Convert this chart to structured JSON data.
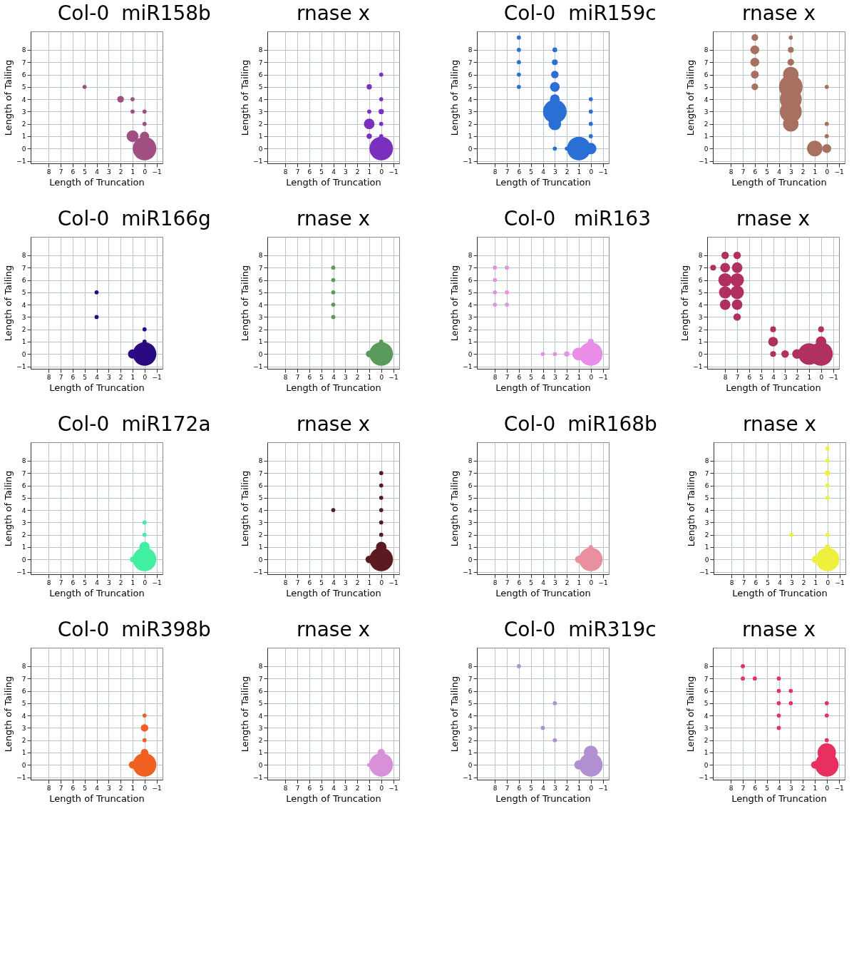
{
  "chart_data": [
    {
      "type": "bubble",
      "title": "Col-0",
      "subtitle": "miR158b",
      "xlabel": "Length of Truncation",
      "ylabel": "Length of Tailing",
      "xlim": [
        9.5,
        -1.5
      ],
      "ylim": [
        -1.2,
        9.5
      ],
      "xticks": [
        8,
        7,
        6,
        5,
        4,
        3,
        2,
        1,
        0,
        -1
      ],
      "yticks": [
        -1,
        0,
        1,
        2,
        3,
        4,
        5,
        6,
        7,
        8
      ],
      "grid": true,
      "marker": "circle",
      "series": [
        {
          "color": "#a05080",
          "x": [
            5,
            2,
            1,
            1,
            0,
            0,
            1,
            0,
            0
          ],
          "values": [
            5,
            4,
            4,
            3,
            3,
            2,
            1,
            1,
            0
          ],
          "sizes": [
            0.03,
            0.08,
            0.03,
            0.03,
            0.03,
            0.03,
            0.25,
            0.15,
            1
          ]
        }
      ]
    },
    {
      "type": "bubble",
      "title": "rnase x",
      "xlabel": "Length of Truncation",
      "ylabel": "Length of Tailing",
      "xlim": [
        9.5,
        -1.5
      ],
      "ylim": [
        -1.2,
        9.5
      ],
      "xticks": [
        8,
        7,
        6,
        5,
        4,
        3,
        2,
        1,
        0,
        -1
      ],
      "yticks": [
        -1,
        0,
        1,
        2,
        3,
        4,
        5,
        6,
        7,
        8
      ],
      "grid": true,
      "marker": "circle",
      "series": [
        {
          "color": "#7b2fbe",
          "x": [
            0,
            1,
            0,
            1,
            0,
            1,
            0,
            1,
            0,
            0
          ],
          "values": [
            6,
            5,
            4,
            3,
            3,
            2,
            2,
            1,
            1,
            0
          ],
          "sizes": [
            0.03,
            0.05,
            0.03,
            0.03,
            0.05,
            0.2,
            0.03,
            0.05,
            0.03,
            1
          ]
        }
      ]
    },
    {
      "type": "bubble",
      "title": "Col-0",
      "subtitle": "miR159c",
      "xlabel": "Length of Truncation",
      "ylabel": "Length of Tailing",
      "xlim": [
        9.5,
        -1.5
      ],
      "ylim": [
        -1.2,
        9.5
      ],
      "xticks": [
        8,
        7,
        6,
        5,
        4,
        3,
        2,
        1,
        0,
        -1
      ],
      "yticks": [
        -1,
        0,
        1,
        2,
        3,
        4,
        5,
        6,
        7,
        8
      ],
      "grid": true,
      "marker": "circle",
      "series": [
        {
          "color": "#2a6fd4",
          "x": [
            6,
            6,
            6,
            6,
            6,
            3,
            3,
            3,
            3,
            3,
            3,
            3,
            3,
            2,
            1,
            0,
            0,
            0,
            0,
            0
          ],
          "values": [
            9,
            8,
            7,
            6,
            5,
            8,
            7,
            6,
            5,
            4,
            3,
            2,
            0,
            0,
            0,
            0,
            4,
            3,
            2,
            1
          ],
          "sizes": [
            0.03,
            0.03,
            0.03,
            0.03,
            0.03,
            0.04,
            0.06,
            0.1,
            0.17,
            0.17,
            1,
            0.29,
            0.03,
            0.03,
            1,
            0.23,
            0.03,
            0.03,
            0.03,
            0.03
          ]
        }
      ]
    },
    {
      "type": "bubble",
      "title": "rnase x",
      "xlabel": "Length of Truncation",
      "ylabel": "Length of Tailing",
      "xlim": [
        9.5,
        -1.5
      ],
      "ylim": [
        -1.2,
        9.5
      ],
      "xticks": [
        8,
        7,
        6,
        5,
        4,
        3,
        2,
        1,
        0,
        -1
      ],
      "yticks": [
        -1,
        0,
        1,
        2,
        3,
        4,
        5,
        6,
        7,
        8
      ],
      "grid": true,
      "marker": "circle",
      "series": [
        {
          "color": "#a87060",
          "x": [
            6,
            6,
            6,
            6,
            6,
            3,
            3,
            3,
            3,
            3,
            3,
            3,
            3,
            1,
            0,
            0,
            0,
            0
          ],
          "values": [
            9,
            8,
            7,
            6,
            5,
            9,
            8,
            7,
            6,
            5,
            4,
            3,
            2,
            0,
            0,
            5,
            2,
            1
          ],
          "sizes": [
            0.08,
            0.14,
            0.14,
            0.11,
            0.08,
            0.03,
            0.06,
            0.08,
            0.43,
            1,
            0.86,
            0.86,
            0.43,
            0.43,
            0.14,
            0.03,
            0.03,
            0.03
          ]
        }
      ]
    },
    {
      "type": "bubble",
      "title": "Col-0",
      "subtitle": "miR166g",
      "xlabel": "Length of Truncation",
      "ylabel": "Length of Tailing",
      "xlim": [
        9.5,
        -1.5
      ],
      "ylim": [
        -1.2,
        9.5
      ],
      "xticks": [
        8,
        7,
        6,
        5,
        4,
        3,
        2,
        1,
        0,
        -1
      ],
      "yticks": [
        -1,
        0,
        1,
        2,
        3,
        4,
        5,
        6,
        7,
        8
      ],
      "grid": true,
      "marker": "circle",
      "series": [
        {
          "color": "#2a0a80",
          "x": [
            4,
            4,
            1,
            0,
            0,
            0
          ],
          "values": [
            5,
            3,
            0,
            0,
            1,
            2
          ],
          "sizes": [
            0.03,
            0.03,
            0.15,
            1,
            0.03,
            0.03
          ]
        }
      ]
    },
    {
      "type": "bubble",
      "title": "rnase x",
      "xlabel": "Length of Truncation",
      "ylabel": "Length of Tailing",
      "xlim": [
        9.5,
        -1.5
      ],
      "ylim": [
        -1.2,
        9.5
      ],
      "xticks": [
        8,
        7,
        6,
        5,
        4,
        3,
        2,
        1,
        0,
        -1
      ],
      "yticks": [
        -1,
        0,
        1,
        2,
        3,
        4,
        5,
        6,
        7,
        8
      ],
      "grid": true,
      "marker": "circle",
      "series": [
        {
          "color": "#5a9a5a",
          "x": [
            4,
            4,
            4,
            4,
            4,
            1,
            0,
            0
          ],
          "values": [
            7,
            6,
            5,
            4,
            3,
            0,
            0,
            1
          ],
          "sizes": [
            0.03,
            0.03,
            0.03,
            0.03,
            0.03,
            0.08,
            1,
            0.03
          ]
        }
      ]
    },
    {
      "type": "bubble",
      "title": "Col-0",
      "subtitle": "miR163",
      "xlabel": "Length of Truncation",
      "ylabel": "Length of Tailing",
      "xlim": [
        9.5,
        -1.5
      ],
      "ylim": [
        -1.2,
        9.5
      ],
      "xticks": [
        8,
        7,
        6,
        5,
        4,
        3,
        2,
        1,
        0,
        -1
      ],
      "yticks": [
        -1,
        0,
        1,
        2,
        3,
        4,
        5,
        6,
        7,
        8
      ],
      "grid": true,
      "marker": "circle",
      "series": [
        {
          "color": "#e88ee8",
          "x": [
            8,
            7,
            8,
            8,
            7,
            8,
            7,
            4,
            3,
            2,
            1,
            0,
            0
          ],
          "values": [
            7,
            7,
            6,
            5,
            5,
            4,
            4,
            0,
            0,
            0,
            0,
            0,
            1
          ],
          "sizes": [
            0.03,
            0.03,
            0.03,
            0.03,
            0.03,
            0.03,
            0.03,
            0.03,
            0.03,
            0.05,
            0.3,
            1,
            0.06
          ]
        }
      ]
    },
    {
      "type": "bubble",
      "title": "rnase x",
      "xlabel": "Length of Truncation",
      "ylabel": "Length of Tailing",
      "xlim": [
        9.5,
        -1.5
      ],
      "ylim": [
        -1.2,
        9.5
      ],
      "xticks": [
        8,
        7,
        6,
        5,
        4,
        3,
        2,
        1,
        0,
        -1
      ],
      "yticks": [
        -1,
        0,
        1,
        2,
        3,
        4,
        5,
        6,
        7,
        8
      ],
      "grid": true,
      "marker": "circle",
      "series": [
        {
          "color": "#b03060",
          "x": [
            8,
            7,
            9,
            8,
            7,
            8,
            7,
            8,
            7,
            8,
            7,
            7,
            4,
            4,
            4,
            3,
            2,
            1,
            0,
            0,
            0
          ],
          "values": [
            8,
            8,
            7,
            7,
            7,
            6,
            6,
            5,
            5,
            4,
            4,
            3,
            2,
            1,
            0,
            0,
            0,
            0,
            0,
            1,
            2
          ],
          "sizes": [
            0.1,
            0.1,
            0.06,
            0.17,
            0.2,
            0.33,
            0.33,
            0.27,
            0.33,
            0.2,
            0.2,
            0.1,
            0.06,
            0.17,
            0.06,
            0.1,
            0.17,
            0.83,
            1,
            0.2,
            0.06
          ]
        }
      ]
    },
    {
      "type": "bubble",
      "title": "Col-0",
      "subtitle": "miR172a",
      "xlabel": "Length of Truncation",
      "ylabel": "Length of Tailing",
      "xlim": [
        9.5,
        -1.5
      ],
      "ylim": [
        -1.2,
        9.5
      ],
      "xticks": [
        8,
        7,
        6,
        5,
        4,
        3,
        2,
        1,
        0,
        -1
      ],
      "yticks": [
        -1,
        0,
        1,
        2,
        3,
        4,
        5,
        6,
        7,
        8
      ],
      "grid": true,
      "marker": "circle",
      "series": [
        {
          "color": "#40f0a0",
          "x": [
            0,
            0,
            0,
            1,
            0
          ],
          "values": [
            3,
            2,
            1,
            0,
            0
          ],
          "sizes": [
            0.03,
            0.03,
            0.2,
            0.05,
            1
          ]
        }
      ]
    },
    {
      "type": "bubble",
      "title": "rnase x",
      "xlabel": "Length of Truncation",
      "ylabel": "Length of Tailing",
      "xlim": [
        9.5,
        -1.5
      ],
      "ylim": [
        -1.2,
        9.5
      ],
      "xticks": [
        8,
        7,
        6,
        5,
        4,
        3,
        2,
        1,
        0,
        -1
      ],
      "yticks": [
        -1,
        0,
        1,
        2,
        3,
        4,
        5,
        6,
        7,
        8
      ],
      "grid": true,
      "marker": "circle",
      "series": [
        {
          "color": "#5a1a20",
          "x": [
            0,
            0,
            0,
            0,
            0,
            4,
            0,
            0,
            1,
            0
          ],
          "values": [
            7,
            6,
            5,
            4,
            3,
            4,
            2,
            1,
            0,
            0
          ],
          "sizes": [
            0.03,
            0.03,
            0.03,
            0.03,
            0.03,
            0.03,
            0.03,
            0.2,
            0.1,
            1
          ]
        }
      ]
    },
    {
      "type": "bubble",
      "title": "Col-0",
      "subtitle": "miR168b",
      "xlabel": "Length of Truncation",
      "ylabel": "Length of Tailing",
      "xlim": [
        9.5,
        -1.5
      ],
      "ylim": [
        -1.2,
        9.5
      ],
      "xticks": [
        8,
        7,
        6,
        5,
        4,
        3,
        2,
        1,
        0,
        -1
      ],
      "yticks": [
        -1,
        0,
        1,
        2,
        3,
        4,
        5,
        6,
        7,
        8
      ],
      "grid": true,
      "marker": "circle",
      "series": [
        {
          "color": "#e890a0",
          "x": [
            1,
            0,
            0
          ],
          "values": [
            0,
            0,
            1
          ],
          "sizes": [
            0.1,
            1,
            0.03
          ]
        }
      ]
    },
    {
      "type": "bubble",
      "title": "rnase x",
      "xlabel": "Length of Truncation",
      "ylabel": "Length of Tailing",
      "xlim": [
        9.5,
        -1.5
      ],
      "ylim": [
        -1.2,
        9.5
      ],
      "xticks": [
        8,
        7,
        6,
        5,
        4,
        3,
        2,
        1,
        0,
        -1
      ],
      "yticks": [
        -1,
        0,
        1,
        2,
        3,
        4,
        5,
        6,
        7,
        8
      ],
      "grid": true,
      "marker": "circle",
      "series": [
        {
          "color": "#eef040",
          "x": [
            0,
            0,
            0,
            0,
            0,
            3,
            0,
            0,
            1,
            0
          ],
          "values": [
            9,
            8,
            7,
            6,
            5,
            2,
            2,
            1,
            0,
            0
          ],
          "sizes": [
            0.03,
            0.03,
            0.05,
            0.03,
            0.03,
            0.03,
            0.03,
            0.05,
            0.1,
            1
          ]
        }
      ]
    },
    {
      "type": "bubble",
      "title": "Col-0",
      "subtitle": "miR398b",
      "xlabel": "Length of Truncation",
      "ylabel": "Length of Tailing",
      "xlim": [
        9.5,
        -1.5
      ],
      "ylim": [
        -1.2,
        9.5
      ],
      "xticks": [
        8,
        7,
        6,
        5,
        4,
        3,
        2,
        1,
        0,
        -1
      ],
      "yticks": [
        -1,
        0,
        1,
        2,
        3,
        4,
        5,
        6,
        7,
        8
      ],
      "grid": true,
      "marker": "circle",
      "series": [
        {
          "color": "#f06020",
          "x": [
            0,
            0,
            0,
            0,
            1,
            0
          ],
          "values": [
            4,
            3,
            2,
            1,
            0,
            0
          ],
          "sizes": [
            0.03,
            0.1,
            0.03,
            0.1,
            0.1,
            1
          ]
        }
      ]
    },
    {
      "type": "bubble",
      "title": "rnase x",
      "xlabel": "Length of Truncation",
      "ylabel": "Length of Tailing",
      "xlim": [
        9.5,
        -1.5
      ],
      "ylim": [
        -1.2,
        9.5
      ],
      "xticks": [
        8,
        7,
        6,
        5,
        4,
        3,
        2,
        1,
        0,
        -1
      ],
      "yticks": [
        -1,
        0,
        1,
        2,
        3,
        4,
        5,
        6,
        7,
        8
      ],
      "grid": true,
      "marker": "circle",
      "series": [
        {
          "color": "#d890d8",
          "x": [
            0,
            1,
            0
          ],
          "values": [
            1,
            0,
            0
          ],
          "sizes": [
            0.1,
            0.03,
            1
          ]
        }
      ]
    },
    {
      "type": "bubble",
      "title": "Col-0",
      "subtitle": "miR319c",
      "xlabel": "Length of Truncation",
      "ylabel": "Length of Tailing",
      "xlim": [
        9.5,
        -1.5
      ],
      "ylim": [
        -1.2,
        9.5
      ],
      "xticks": [
        8,
        7,
        6,
        5,
        4,
        3,
        2,
        1,
        0,
        -1
      ],
      "yticks": [
        -1,
        0,
        1,
        2,
        3,
        4,
        5,
        6,
        7,
        8
      ],
      "grid": true,
      "marker": "circle",
      "series": [
        {
          "color": "#b090d0",
          "x": [
            6,
            3,
            4,
            3,
            0,
            1,
            0
          ],
          "values": [
            8,
            5,
            3,
            2,
            1,
            0,
            0
          ],
          "sizes": [
            0.03,
            0.03,
            0.03,
            0.03,
            0.35,
            0.15,
            1
          ]
        }
      ]
    },
    {
      "type": "bubble",
      "title": "rnase x",
      "xlabel": "Length of Truncation",
      "ylabel": "Length of Tailing",
      "xlim": [
        9.5,
        -1.5
      ],
      "ylim": [
        -1.2,
        9.5
      ],
      "xticks": [
        8,
        7,
        6,
        5,
        4,
        3,
        2,
        1,
        0,
        -1
      ],
      "yticks": [
        -1,
        0,
        1,
        2,
        3,
        4,
        5,
        6,
        7,
        8
      ],
      "grid": true,
      "marker": "circle",
      "series": [
        {
          "color": "#e83060",
          "x": [
            7,
            7,
            6,
            4,
            4,
            4,
            4,
            4,
            3,
            3,
            0,
            0,
            0,
            1,
            0,
            0
          ],
          "values": [
            8,
            7,
            7,
            7,
            6,
            5,
            4,
            3,
            6,
            5,
            5,
            4,
            2,
            0,
            1,
            0
          ],
          "sizes": [
            0.03,
            0.03,
            0.03,
            0.03,
            0.03,
            0.03,
            0.03,
            0.03,
            0.03,
            0.03,
            0.03,
            0.03,
            0.03,
            0.1,
            0.6,
            1
          ]
        }
      ]
    }
  ]
}
